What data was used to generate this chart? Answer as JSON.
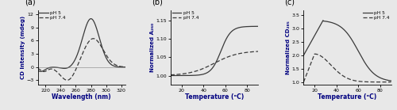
{
  "panel_a": {
    "label": "(a)",
    "xlabel": "Wavelength (nm)",
    "ylabel": "CD Intensity (mdeg)",
    "xlim": [
      210,
      325
    ],
    "ylim": [
      -4,
      13
    ],
    "yticks": [
      -3,
      0,
      3,
      6,
      9,
      12
    ],
    "xticks": [
      220,
      240,
      260,
      280,
      300,
      320
    ],
    "legend_entries": [
      "pH 5",
      "pH 7.4"
    ]
  },
  "panel_b": {
    "label": "(b)",
    "xlabel": "Temperature (ᵒC)",
    "ylabel": "Normalized A₂₆₀",
    "xlim": [
      10,
      90
    ],
    "ylim": [
      0.975,
      1.18
    ],
    "yticks": [
      1.0,
      1.05,
      1.1,
      1.15
    ],
    "xticks": [
      20,
      40,
      60,
      80
    ],
    "legend_entries": [
      "pH 5",
      "pH 7.4"
    ]
  },
  "panel_c": {
    "label": "(c)",
    "xlabel": "Temperature (ᵒC)",
    "ylabel": "Normalized CD₂₈₅",
    "xlim": [
      10,
      90
    ],
    "ylim": [
      0.9,
      3.7
    ],
    "yticks": [
      1.0,
      1.5,
      2.0,
      2.5,
      3.0,
      3.5
    ],
    "xticks": [
      20,
      40,
      60,
      80
    ],
    "legend_entries": [
      "pH 5",
      "pH 7.4"
    ]
  },
  "bg_color": "#e8e8e8",
  "axis_label_color": "#000080",
  "line_color": "#3a3a3a",
  "tick_label_color": "#000000",
  "fig_bg": "#d8d8d8"
}
